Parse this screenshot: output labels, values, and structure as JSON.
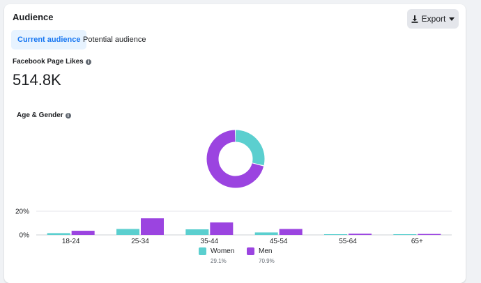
{
  "header": {
    "title": "Audience",
    "export_label": "Export"
  },
  "tabs": [
    {
      "label": "Current audience",
      "active": true
    },
    {
      "label": "Potential audience",
      "active": false
    }
  ],
  "page_likes": {
    "label": "Facebook Page Likes",
    "value": "514.8K"
  },
  "age_gender": {
    "label": "Age & Gender"
  },
  "colors": {
    "women": "#5bcfcf",
    "men": "#9b44e0",
    "accent": "#1877f2"
  },
  "chart_data": {
    "type": "bar",
    "categories": [
      "18-24",
      "25-34",
      "35-44",
      "45-54",
      "55-64",
      "65+"
    ],
    "series": [
      {
        "name": "Women",
        "values": [
          1.5,
          5.0,
          4.7,
          2.1,
          0.6,
          0.6
        ]
      },
      {
        "name": "Men",
        "values": [
          3.5,
          14.0,
          10.5,
          5.0,
          1.0,
          0.8
        ]
      }
    ],
    "y_ticks": [
      "0%",
      "20%"
    ],
    "ylim": [
      0,
      20
    ],
    "grid": true,
    "donut": [
      {
        "name": "Women",
        "value": 29.1
      },
      {
        "name": "Men",
        "value": 70.9
      }
    ]
  },
  "legend": [
    {
      "name": "Women",
      "pct": "29.1%"
    },
    {
      "name": "Men",
      "pct": "70.9%"
    }
  ]
}
